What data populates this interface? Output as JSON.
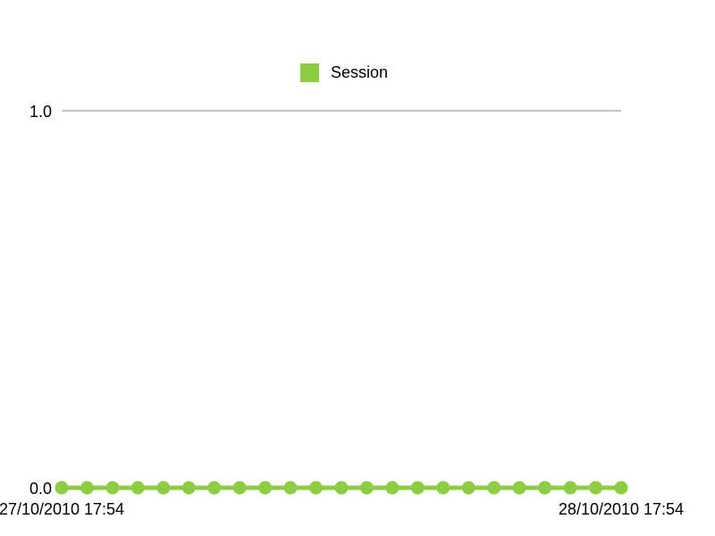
{
  "chart_data": {
    "type": "line",
    "title": "",
    "xlabel": "",
    "ylabel": "",
    "legend": {
      "placement": "top-center",
      "entries": [
        {
          "name": "Session",
          "color": "#8ecc43"
        }
      ]
    },
    "x_tick_labels": [
      "27/10/2010 17:54",
      "28/10/2010 17:54"
    ],
    "y_tick_labels": [
      "0.0",
      "1.0"
    ],
    "ylim": [
      0,
      1
    ],
    "grid": "horizontal line at 1.0 only",
    "series": [
      {
        "name": "Session",
        "color": "#8ecc43",
        "values": [
          0,
          0,
          0,
          0,
          0,
          0,
          0,
          0,
          0,
          0,
          0,
          0,
          0,
          0,
          0,
          0,
          0,
          0,
          0,
          0,
          0,
          0,
          0
        ]
      }
    ]
  }
}
